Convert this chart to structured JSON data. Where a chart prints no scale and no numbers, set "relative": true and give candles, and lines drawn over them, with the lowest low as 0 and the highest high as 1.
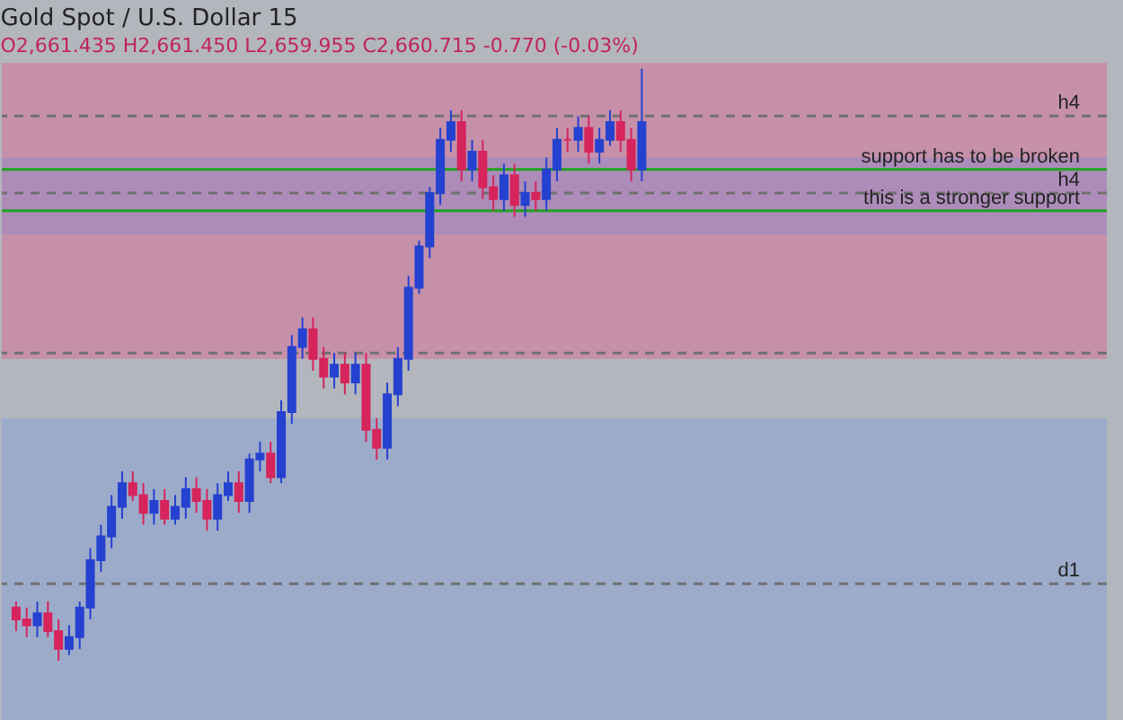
{
  "chart_data": {
    "type": "candlestick",
    "title": "Gold Spot / U.S. Dollar 15",
    "subtitle": "O2,661.435 H2,661.450 L2,659.955 C2,660.715 -0.770 (-0.03%)",
    "relative": true,
    "categories": [
      null,
      null,
      null,
      null,
      null,
      null,
      null,
      null,
      null,
      null,
      null,
      null,
      null,
      null,
      null,
      null,
      null,
      null,
      null,
      null,
      null,
      null,
      null,
      null,
      null,
      null,
      null,
      null,
      null,
      null,
      null,
      null,
      null,
      null,
      null,
      null,
      null,
      null,
      null,
      null,
      null,
      null,
      null,
      null,
      null,
      null,
      null,
      null,
      null,
      null,
      null,
      null,
      null,
      null,
      null,
      null,
      null,
      null,
      null,
      null
    ],
    "ohlc": [
      [
        0.09,
        0.1,
        0.05,
        0.07
      ],
      [
        0.07,
        0.09,
        0.04,
        0.06
      ],
      [
        0.06,
        0.1,
        0.04,
        0.08
      ],
      [
        0.08,
        0.1,
        0.04,
        0.05
      ],
      [
        0.05,
        0.07,
        0,
        0.02
      ],
      [
        0.02,
        0.06,
        0.01,
        0.04
      ],
      [
        0.04,
        0.1,
        0.02,
        0.09
      ],
      [
        0.09,
        0.19,
        0.07,
        0.17
      ],
      [
        0.17,
        0.23,
        0.15,
        0.21
      ],
      [
        0.21,
        0.28,
        0.19,
        0.26
      ],
      [
        0.26,
        0.32,
        0.24,
        0.3
      ],
      [
        0.3,
        0.32,
        0.27,
        0.28
      ],
      [
        0.28,
        0.3,
        0.23,
        0.25
      ],
      [
        0.25,
        0.29,
        0.23,
        0.27
      ],
      [
        0.27,
        0.29,
        0.23,
        0.24
      ],
      [
        0.24,
        0.28,
        0.23,
        0.26
      ],
      [
        0.26,
        0.31,
        0.24,
        0.29
      ],
      [
        0.29,
        0.31,
        0.25,
        0.27
      ],
      [
        0.27,
        0.29,
        0.22,
        0.24
      ],
      [
        0.24,
        0.3,
        0.22,
        0.28
      ],
      [
        0.28,
        0.32,
        0.27,
        0.3
      ],
      [
        0.3,
        0.32,
        0.25,
        0.27
      ],
      [
        0.27,
        0.35,
        0.25,
        0.34
      ],
      [
        0.34,
        0.37,
        0.32,
        0.35
      ],
      [
        0.35,
        0.37,
        0.3,
        0.31
      ],
      [
        0.31,
        0.44,
        0.3,
        0.42
      ],
      [
        0.42,
        0.55,
        0.4,
        0.53
      ],
      [
        0.53,
        0.58,
        0.51,
        0.56
      ],
      [
        0.56,
        0.58,
        0.49,
        0.51
      ],
      [
        0.51,
        0.53,
        0.46,
        0.48
      ],
      [
        0.48,
        0.52,
        0.46,
        0.5
      ],
      [
        0.5,
        0.52,
        0.45,
        0.47
      ],
      [
        0.47,
        0.52,
        0.45,
        0.5
      ],
      [
        0.5,
        0.52,
        0.37,
        0.39
      ],
      [
        0.39,
        0.41,
        0.34,
        0.36
      ],
      [
        0.36,
        0.47,
        0.34,
        0.45
      ],
      [
        0.45,
        0.53,
        0.43,
        0.51
      ],
      [
        0.51,
        0.65,
        0.49,
        0.63
      ],
      [
        0.63,
        0.71,
        0.62,
        0.7
      ],
      [
        0.7,
        0.8,
        0.68,
        0.79
      ],
      [
        0.79,
        0.9,
        0.77,
        0.88
      ],
      [
        0.88,
        0.93,
        0.86,
        0.91
      ],
      [
        0.91,
        0.93,
        0.81,
        0.83
      ],
      [
        0.83,
        0.88,
        0.81,
        0.86
      ],
      [
        0.86,
        0.88,
        0.78,
        0.8
      ],
      [
        0.8,
        0.82,
        0.76,
        0.78
      ],
      [
        0.78,
        0.84,
        0.76,
        0.82
      ],
      [
        0.82,
        0.84,
        0.75,
        0.77
      ],
      [
        0.77,
        0.81,
        0.75,
        0.79
      ],
      [
        0.79,
        0.81,
        0.76,
        0.78
      ],
      [
        0.78,
        0.85,
        0.76,
        0.83
      ],
      [
        0.83,
        0.9,
        0.81,
        0.88
      ],
      [
        0.88,
        0.9,
        0.86,
        0.88
      ],
      [
        0.88,
        0.92,
        0.86,
        0.9
      ],
      [
        0.9,
        0.92,
        0.84,
        0.86
      ],
      [
        0.86,
        0.9,
        0.84,
        0.88
      ],
      [
        0.88,
        0.93,
        0.87,
        0.91
      ],
      [
        0.91,
        0.93,
        0.86,
        0.88
      ],
      [
        0.88,
        0.9,
        0.81,
        0.83
      ],
      [
        0.83,
        1,
        0.81,
        0.91
      ]
    ],
    "colors": [
      "#d6245c",
      "#d6245c",
      "#2541d0",
      "#d6245c",
      "#d6245c",
      "#2541d0",
      "#2541d0",
      "#2541d0",
      "#2541d0",
      "#2541d0",
      "#2541d0",
      "#d6245c",
      "#d6245c",
      "#2541d0",
      "#d6245c",
      "#2541d0",
      "#2541d0",
      "#d6245c",
      "#d6245c",
      "#2541d0",
      "#2541d0",
      "#d6245c",
      "#2541d0",
      "#2541d0",
      "#d6245c",
      "#2541d0",
      "#2541d0",
      "#2541d0",
      "#d6245c",
      "#d6245c",
      "#2541d0",
      "#d6245c",
      "#2541d0",
      "#d6245c",
      "#d6245c",
      "#2541d0",
      "#2541d0",
      "#2541d0",
      "#2541d0",
      "#2541d0",
      "#2541d0",
      "#2541d0",
      "#d6245c",
      "#2541d0",
      "#d6245c",
      "#d6245c",
      "#2541d0",
      "#d6245c",
      "#2541d0",
      "#d6245c",
      "#2541d0",
      "#2541d0",
      "#d6245c",
      "#2541d0",
      "#d6245c",
      "#2541d0",
      "#2541d0",
      "#d6245c",
      "#d6245c",
      "#2541d0"
    ],
    "bands": [
      {
        "axis": "y",
        "from": 0.51,
        "to": 1.01,
        "label": null,
        "color": "#c98aa6"
      },
      {
        "axis": "y",
        "from": 0.72,
        "to": 0.85,
        "label": null,
        "color": "#a88cbc"
      },
      {
        "axis": "y",
        "from": -0.1,
        "to": 0.41,
        "label": null,
        "color": "#98a9cd"
      }
    ],
    "ref_lines": [
      {
        "axis": "y",
        "value": 0.92,
        "label": "h4",
        "color": "#707070",
        "line_style": "dashed"
      },
      {
        "axis": "y",
        "value": 0.79,
        "label": "h4",
        "color": "#707070",
        "line_style": "dashed"
      },
      {
        "axis": "y",
        "value": 0.52,
        "label": null,
        "color": "#707070",
        "line_style": "dashed"
      },
      {
        "axis": "y",
        "value": 0.13,
        "label": "d1",
        "color": "#707070",
        "line_style": "dashed"
      },
      {
        "axis": "y",
        "value": 0.83,
        "label": "support has to be broken",
        "color": "#1fa31f",
        "line_style": "solid"
      },
      {
        "axis": "y",
        "value": 0.76,
        "label": "this is a stronger support",
        "color": "#1fa31f",
        "line_style": "solid"
      }
    ]
  }
}
